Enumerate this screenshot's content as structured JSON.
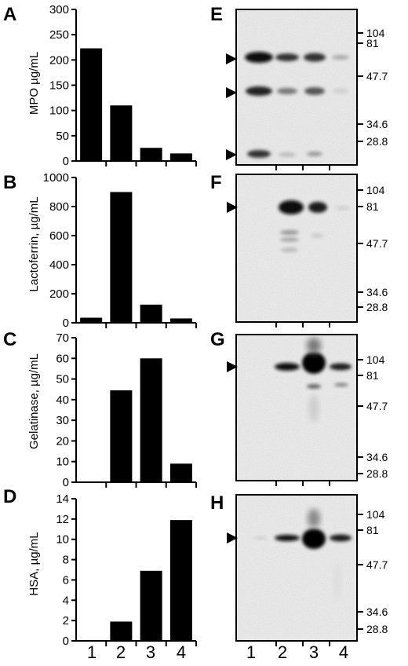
{
  "figure": {
    "lane_labels": [
      "1",
      "2",
      "3",
      "4"
    ]
  },
  "chart_data": [
    {
      "panel": "A",
      "type": "bar",
      "categories": [
        "1",
        "2",
        "3",
        "4"
      ],
      "values": [
        223,
        110,
        26,
        15
      ],
      "ylabel": "MPO µg/mL",
      "ylim": [
        0,
        300
      ],
      "yticks": [
        0,
        50,
        100,
        150,
        200,
        250,
        300
      ]
    },
    {
      "panel": "B",
      "type": "bar",
      "categories": [
        "1",
        "2",
        "3",
        "4"
      ],
      "values": [
        35,
        900,
        125,
        30
      ],
      "ylabel": "Lactoferrin, µg/mL",
      "ylim": [
        0,
        1000
      ],
      "yticks": [
        0,
        200,
        400,
        600,
        800,
        1000
      ]
    },
    {
      "panel": "C",
      "type": "bar",
      "categories": [
        "1",
        "2",
        "3",
        "4"
      ],
      "values": [
        0,
        44.5,
        60,
        9
      ],
      "ylabel": "Gelatinase, µg/mL",
      "ylim": [
        0,
        70
      ],
      "yticks": [
        0,
        10,
        20,
        30,
        40,
        50,
        60,
        70
      ]
    },
    {
      "panel": "D",
      "type": "bar",
      "categories": [
        "1",
        "2",
        "3",
        "4"
      ],
      "values": [
        0,
        1.9,
        6.9,
        11.9
      ],
      "ylabel": "HSA, µg/mL",
      "ylim": [
        0,
        14
      ],
      "yticks": [
        0,
        2,
        4,
        6,
        8,
        10,
        12,
        14
      ]
    }
  ],
  "blots": [
    {
      "panel": "E",
      "mw": [
        "104",
        "81",
        "47.7",
        "34.6",
        "28.8"
      ]
    },
    {
      "panel": "F",
      "mw": [
        "104",
        "81",
        "47.7",
        "34.6",
        "28.8"
      ]
    },
    {
      "panel": "G",
      "mw": [
        "104",
        "81",
        "47.7",
        "34.6",
        "28.8"
      ]
    },
    {
      "panel": "H",
      "mw": [
        "104",
        "81",
        "47.7",
        "34.6",
        "28.8"
      ]
    }
  ]
}
